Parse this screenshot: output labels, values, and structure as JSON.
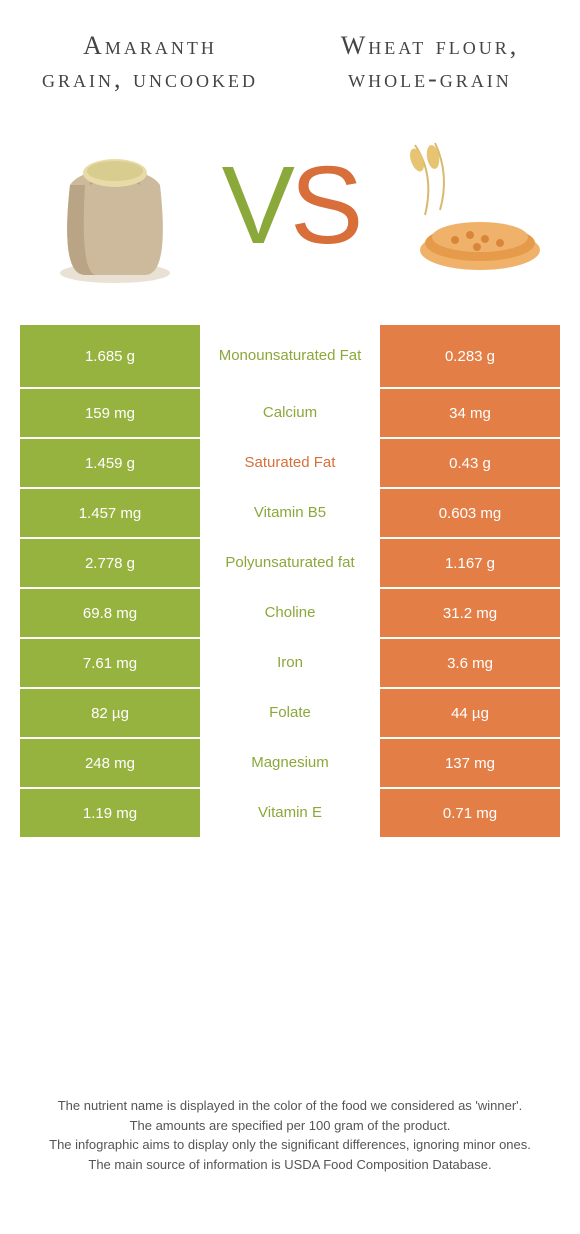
{
  "colors": {
    "left_bg": "#97b33f",
    "right_bg": "#e37e47",
    "mid_left_text": "#8ba83a",
    "mid_right_text": "#d86f3a",
    "page_bg": "#ffffff"
  },
  "header": {
    "left_title": "Amaranth grain, uncooked",
    "right_title": "Wheat flour, whole-grain"
  },
  "vs": {
    "v": "V",
    "s": "S"
  },
  "rows": [
    {
      "left": "1.685 g",
      "label": "Monounsaturated Fat",
      "right": "0.283 g",
      "winner": "left",
      "tall": true
    },
    {
      "left": "159 mg",
      "label": "Calcium",
      "right": "34 mg",
      "winner": "left"
    },
    {
      "left": "1.459 g",
      "label": "Saturated Fat",
      "right": "0.43 g",
      "winner": "right"
    },
    {
      "left": "1.457 mg",
      "label": "Vitamin B5",
      "right": "0.603 mg",
      "winner": "left"
    },
    {
      "left": "2.778 g",
      "label": "Polyunsaturated fat",
      "right": "1.167 g",
      "winner": "left"
    },
    {
      "left": "69.8 mg",
      "label": "Choline",
      "right": "31.2 mg",
      "winner": "left"
    },
    {
      "left": "7.61 mg",
      "label": "Iron",
      "right": "3.6 mg",
      "winner": "left"
    },
    {
      "left": "82 µg",
      "label": "Folate",
      "right": "44 µg",
      "winner": "left"
    },
    {
      "left": "248 mg",
      "label": "Magnesium",
      "right": "137 mg",
      "winner": "left"
    },
    {
      "left": "1.19 mg",
      "label": "Vitamin E",
      "right": "0.71 mg",
      "winner": "left"
    }
  ],
  "footer": {
    "line1": "The nutrient name is displayed in the color of the food we considered as 'winner'.",
    "line2": "The amounts are specified per 100 gram of the product.",
    "line3": "The infographic aims to display only the significant differences, ignoring minor ones.",
    "line4": "The main source of information is USDA Food Composition Database."
  }
}
